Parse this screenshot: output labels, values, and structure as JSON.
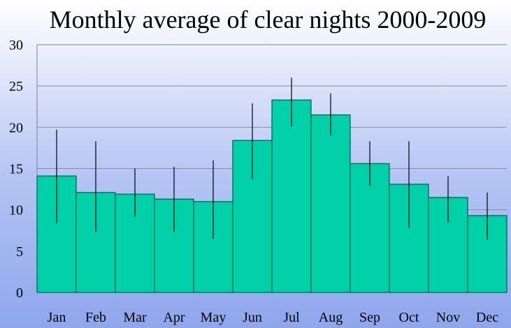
{
  "chart_data": {
    "type": "bar",
    "title": "Monthly average of clear nights 2000-2009",
    "xlabel": "",
    "ylabel": "",
    "ylim": [
      0,
      30
    ],
    "yticks": [
      0,
      5,
      10,
      15,
      20,
      25,
      30
    ],
    "grid": true,
    "categories": [
      "Jan",
      "Feb",
      "Mar",
      "Apr",
      "May",
      "Jun",
      "Jul",
      "Aug",
      "Sep",
      "Oct",
      "Nov",
      "Dec"
    ],
    "values": [
      14.1,
      12.1,
      11.9,
      11.3,
      11.0,
      18.4,
      23.3,
      21.5,
      15.6,
      13.1,
      11.5,
      9.3
    ],
    "error_low": [
      8.4,
      7.3,
      9.2,
      7.3,
      6.5,
      13.7,
      20.1,
      19.0,
      12.9,
      7.8,
      8.5,
      6.4
    ],
    "error_high": [
      19.7,
      18.3,
      15.0,
      15.2,
      16.0,
      22.9,
      26.0,
      24.1,
      18.3,
      18.3,
      14.1,
      12.1
    ],
    "colors": {
      "bar": "#00d0a8",
      "bar_edge": "#006a52",
      "error": "#000000"
    }
  }
}
